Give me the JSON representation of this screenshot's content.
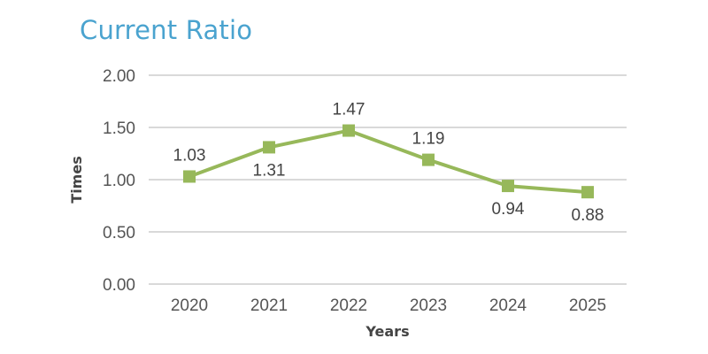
{
  "chart_data": {
    "type": "line",
    "title": "Current Ratio",
    "xlabel": "Years",
    "ylabel": "Times",
    "categories": [
      "2020",
      "2021",
      "2022",
      "2023",
      "2024",
      "2025"
    ],
    "series": [
      {
        "values": [
          1.03,
          1.31,
          1.47,
          1.19,
          0.94,
          0.88
        ],
        "labels": [
          "1.03",
          "1.31",
          "1.47",
          "1.19",
          "0.94",
          "0.88"
        ],
        "label_positions": [
          "above",
          "below",
          "above",
          "above",
          "below",
          "below"
        ]
      }
    ],
    "ylim": [
      0,
      2
    ],
    "yticks": [
      "0.00",
      "0.50",
      "1.00",
      "1.50",
      "2.00"
    ],
    "grid": true,
    "colors": {
      "line": "#97b85a",
      "marker": "#97b85a",
      "grid": "#d9d9d9",
      "title": "#4aa3cf"
    }
  }
}
